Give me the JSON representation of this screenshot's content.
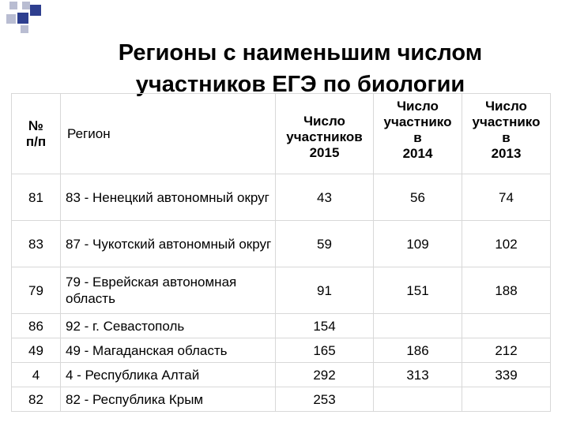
{
  "title": {
    "line1": "Регионы с наименьшим числом",
    "line2": "участников ЕГЭ по биологии"
  },
  "colors": {
    "deco_blue": "#2e3f8f",
    "deco_gray": "#b9bdd2",
    "grid": "#d8d8d8"
  },
  "table": {
    "headers": {
      "num": [
        "№",
        "п/п"
      ],
      "region": "Регион",
      "y2015": [
        "Число",
        "участников",
        "2015"
      ],
      "y2014": [
        "Число",
        "участнико",
        "в",
        "2014"
      ],
      "y2013": [
        "Число",
        "участнико",
        "в",
        "2013"
      ]
    },
    "rows": [
      {
        "num": "81",
        "region": "83 - Ненецкий автономный округ",
        "y2015": "43",
        "y2014": "56",
        "y2013": "74"
      },
      {
        "num": "83",
        "region": "87 - Чукотский автономный округ",
        "y2015": "59",
        "y2014": "109",
        "y2013": "102"
      },
      {
        "num": "79",
        "region": "79 - Еврейская автономная область",
        "y2015": "91",
        "y2014": "151",
        "y2013": "188"
      },
      {
        "num": "86",
        "region": "92 - г. Севастополь",
        "y2015": "154",
        "y2014": "",
        "y2013": ""
      },
      {
        "num": "49",
        "region": "49 - Магаданская область",
        "y2015": "165",
        "y2014": "186",
        "y2013": "212"
      },
      {
        "num": "4",
        "region": "4 - Республика Алтай",
        "y2015": "292",
        "y2014": "313",
        "y2013": "339"
      },
      {
        "num": "82",
        "region": "82 - Республика Крым",
        "y2015": "253",
        "y2014": "",
        "y2013": ""
      }
    ]
  }
}
